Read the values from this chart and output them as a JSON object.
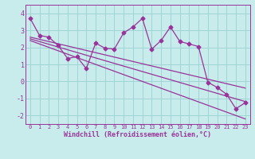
{
  "x": [
    0,
    1,
    2,
    3,
    4,
    5,
    6,
    7,
    8,
    9,
    10,
    11,
    12,
    13,
    14,
    15,
    16,
    17,
    18,
    19,
    20,
    21,
    22,
    23
  ],
  "y_main": [
    3.7,
    2.7,
    2.6,
    2.1,
    1.35,
    1.45,
    0.75,
    2.25,
    1.95,
    1.9,
    2.85,
    3.2,
    3.7,
    1.9,
    2.4,
    3.2,
    2.35,
    2.2,
    2.05,
    -0.05,
    -0.35,
    -0.75,
    -1.6,
    -1.25
  ],
  "y_line1": [
    2.6,
    2.47,
    2.34,
    2.21,
    2.08,
    1.95,
    1.82,
    1.69,
    1.56,
    1.43,
    1.3,
    1.17,
    1.04,
    0.91,
    0.78,
    0.65,
    0.52,
    0.39,
    0.26,
    0.13,
    0.0,
    -0.13,
    -0.26,
    -0.39
  ],
  "y_line2": [
    2.5,
    2.34,
    2.18,
    2.02,
    1.86,
    1.7,
    1.54,
    1.38,
    1.22,
    1.06,
    0.9,
    0.74,
    0.58,
    0.42,
    0.26,
    0.1,
    -0.06,
    -0.22,
    -0.38,
    -0.54,
    -0.7,
    -0.86,
    -1.02,
    -1.18
  ],
  "y_line3": [
    2.4,
    2.2,
    2.0,
    1.8,
    1.6,
    1.4,
    1.2,
    1.0,
    0.8,
    0.6,
    0.4,
    0.2,
    0.0,
    -0.2,
    -0.4,
    -0.6,
    -0.8,
    -1.0,
    -1.2,
    -1.4,
    -1.6,
    -1.8,
    -2.0,
    -2.2
  ],
  "color": "#993399",
  "bg_color": "#c8ecec",
  "grid_color": "#a0d4d4",
  "xlim": [
    -0.5,
    23.5
  ],
  "ylim": [
    -2.5,
    4.5
  ],
  "yticks": [
    -2,
    -1,
    0,
    1,
    2,
    3,
    4
  ],
  "xticks": [
    0,
    1,
    2,
    3,
    4,
    5,
    6,
    7,
    8,
    9,
    10,
    11,
    12,
    13,
    14,
    15,
    16,
    17,
    18,
    19,
    20,
    21,
    22,
    23
  ],
  "xlabel": "Windchill (Refroidissement éolien,°C)",
  "marker": "D",
  "markersize": 2.5,
  "linewidth": 0.9
}
